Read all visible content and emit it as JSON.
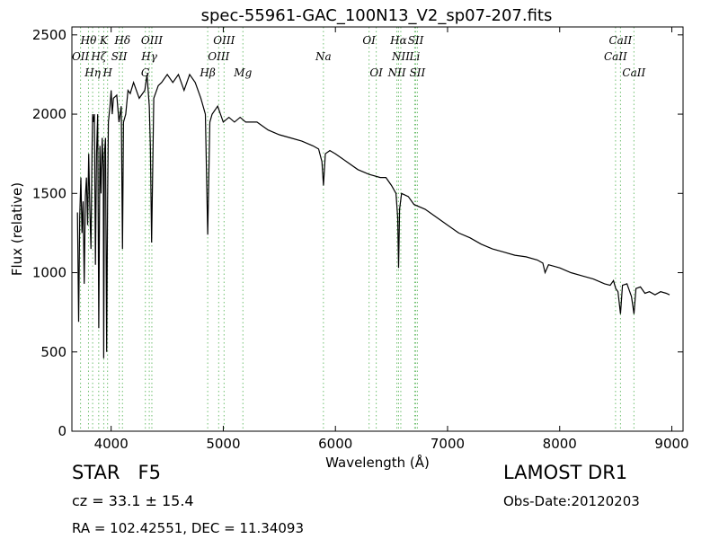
{
  "chart_data": {
    "type": "line",
    "title": "spec-55961-GAC_100N13_V2_sp07-207.fits",
    "xlabel": "Wavelength (Å)",
    "ylabel": "Flux (relative)",
    "xlim": [
      3650,
      9100
    ],
    "ylim": [
      0,
      2550
    ],
    "xticks": [
      4000,
      5000,
      6000,
      7000,
      8000,
      9000
    ],
    "yticks": [
      0,
      500,
      1000,
      1500,
      2000,
      2500
    ],
    "grid": false,
    "series": [
      {
        "color": "#000000",
        "x": [
          3700,
          3710,
          3720,
          3730,
          3740,
          3750,
          3760,
          3770,
          3780,
          3790,
          3800,
          3810,
          3820,
          3830,
          3835,
          3840,
          3850,
          3860,
          3870,
          3880,
          3890,
          3900,
          3910,
          3920,
          3930,
          3934,
          3940,
          3950,
          3960,
          3968,
          3975,
          3990,
          4000,
          4010,
          4020,
          4050,
          4070,
          4090,
          4101,
          4110,
          4130,
          4150,
          4170,
          4200,
          4250,
          4300,
          4320,
          4340,
          4350,
          4361,
          4380,
          4420,
          4450,
          4500,
          4550,
          4600,
          4650,
          4700,
          4750,
          4800,
          4840,
          4861,
          4880,
          4900,
          4950,
          5000,
          5050,
          5100,
          5150,
          5200,
          5300,
          5400,
          5500,
          5600,
          5700,
          5800,
          5850,
          5880,
          5893,
          5910,
          5950,
          6000,
          6100,
          6200,
          6300,
          6400,
          6450,
          6500,
          6540,
          6555,
          6563,
          6572,
          6590,
          6650,
          6700,
          6800,
          6900,
          7000,
          7100,
          7200,
          7300,
          7400,
          7500,
          7600,
          7700,
          7800,
          7850,
          7870,
          7900,
          8000,
          8100,
          8200,
          8300,
          8400,
          8450,
          8480,
          8500,
          8520,
          8542,
          8560,
          8600,
          8640,
          8662,
          8680,
          8720,
          8760,
          8800,
          8850,
          8900,
          8950,
          8980
        ],
        "y": [
          1380,
          690,
          1350,
          1600,
          1250,
          1450,
          930,
          1480,
          1600,
          1300,
          1750,
          1400,
          1150,
          1800,
          2000,
          1950,
          2000,
          1050,
          1750,
          2000,
          650,
          1800,
          1500,
          1850,
          1650,
          460,
          1750,
          1850,
          500,
          1450,
          1950,
          2050,
          2150,
          2000,
          2100,
          2120,
          1950,
          2050,
          1150,
          1950,
          2000,
          2150,
          2130,
          2200,
          2100,
          2150,
          2250,
          2050,
          1800,
          1190,
          2100,
          2180,
          2200,
          2250,
          2200,
          2250,
          2150,
          2250,
          2200,
          2100,
          2000,
          1240,
          1950,
          2000,
          2050,
          1950,
          1980,
          1950,
          1980,
          1950,
          1950,
          1900,
          1870,
          1850,
          1830,
          1800,
          1780,
          1700,
          1550,
          1750,
          1770,
          1750,
          1700,
          1650,
          1620,
          1600,
          1600,
          1550,
          1500,
          1350,
          1030,
          1400,
          1500,
          1480,
          1430,
          1400,
          1350,
          1300,
          1250,
          1220,
          1180,
          1150,
          1130,
          1110,
          1100,
          1080,
          1060,
          1000,
          1050,
          1030,
          1000,
          980,
          960,
          930,
          920,
          950,
          900,
          880,
          740,
          920,
          930,
          850,
          740,
          900,
          910,
          870,
          880,
          860,
          880,
          870,
          860
        ]
      }
    ],
    "lines": [
      {
        "label": "OII",
        "x": 3727
      },
      {
        "label": "Hθ",
        "x": 3798
      },
      {
        "label": "Hη",
        "x": 3835
      },
      {
        "label": "Hζ",
        "x": 3889
      },
      {
        "label": "K",
        "x": 3934
      },
      {
        "label": "H",
        "x": 3968
      },
      {
        "label": "SII",
        "x": 4072
      },
      {
        "label": "Hδ",
        "x": 4101
      },
      {
        "label": "G",
        "x": 4305
      },
      {
        "label": "Hγ",
        "x": 4340
      },
      {
        "label": "OIII",
        "x": 4363
      },
      {
        "label": "Hβ",
        "x": 4861
      },
      {
        "label": "OIII",
        "x": 4959
      },
      {
        "label": "OIII",
        "x": 5007
      },
      {
        "label": "Mg",
        "x": 5175
      },
      {
        "label": "Na",
        "x": 5893
      },
      {
        "label": "OI",
        "x": 6300
      },
      {
        "label": "OI",
        "x": 6364
      },
      {
        "label": "NII",
        "x": 6548
      },
      {
        "label": "Hα",
        "x": 6563
      },
      {
        "label": "NII",
        "x": 6583
      },
      {
        "label": "Li",
        "x": 6707
      },
      {
        "label": "SII",
        "x": 6716
      },
      {
        "label": "SII",
        "x": 6731
      },
      {
        "label": "CaII",
        "x": 8498
      },
      {
        "label": "CaII",
        "x": 8542
      },
      {
        "label": "CaII",
        "x": 8662
      }
    ],
    "line_label_rows": [
      {
        "text": "Hθ",
        "x": 3798,
        "row": 1
      },
      {
        "text": "K",
        "x": 3934,
        "row": 1
      },
      {
        "text": "Hδ",
        "x": 4101,
        "row": 1
      },
      {
        "text": "OIII",
        "x": 4363,
        "row": 1
      },
      {
        "text": "OIII",
        "x": 5007,
        "row": 1
      },
      {
        "text": "OI",
        "x": 6300,
        "row": 1
      },
      {
        "text": "Hα",
        "x": 6563,
        "row": 1
      },
      {
        "text": "SII",
        "x": 6716,
        "row": 1
      },
      {
        "text": "CaII",
        "x": 8542,
        "row": 1
      },
      {
        "text": "OII",
        "x": 3727,
        "row": 2
      },
      {
        "text": "Hζ",
        "x": 3889,
        "row": 2
      },
      {
        "text": "SII",
        "x": 4072,
        "row": 2
      },
      {
        "text": "Hγ",
        "x": 4340,
        "row": 2
      },
      {
        "text": "OIII",
        "x": 4959,
        "row": 2
      },
      {
        "text": "Na",
        "x": 5893,
        "row": 2
      },
      {
        "text": "NII",
        "x": 6583,
        "row": 2
      },
      {
        "text": "Li",
        "x": 6707,
        "row": 2
      },
      {
        "text": "CaII",
        "x": 8498,
        "row": 2
      },
      {
        "text": "Hη",
        "x": 3835,
        "row": 3
      },
      {
        "text": "H",
        "x": 3968,
        "row": 3
      },
      {
        "text": "G",
        "x": 4305,
        "row": 3
      },
      {
        "text": "Hβ",
        "x": 4861,
        "row": 3
      },
      {
        "text": "Mg",
        "x": 5175,
        "row": 3
      },
      {
        "text": "OI",
        "x": 6364,
        "row": 3
      },
      {
        "text": "NII",
        "x": 6548,
        "row": 3
      },
      {
        "text": "SII",
        "x": 6731,
        "row": 3
      },
      {
        "text": "CaII",
        "x": 8662,
        "row": 3
      }
    ],
    "line_marker_color": "#6fbf6f"
  },
  "info": {
    "class_label": "STAR",
    "subclass": "F5",
    "survey": "LAMOST DR1",
    "redshift_text": "cz = 33.1 ± 15.4",
    "obs_date": "Obs-Date:20120203",
    "coords": "RA = 102.42551, DEC = 11.34093"
  }
}
